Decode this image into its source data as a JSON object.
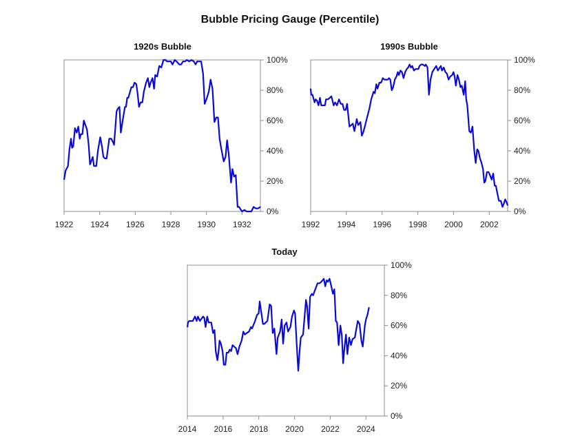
{
  "title": "Bubble Pricing Gauge (Percentile)",
  "colors": {
    "line": "#0a0ad8",
    "axis": "#8c8c8c"
  },
  "chart_data": [
    {
      "type": "line",
      "title": "1920s Bubble",
      "xlabel": "",
      "ylabel": "",
      "xlim": [
        1922,
        1933.03
      ],
      "ylim": [
        0,
        100
      ],
      "xticks": [
        "1922",
        "1924",
        "1926",
        "1928",
        "1930",
        "1932"
      ],
      "yticks": [
        "0%",
        "20%",
        "40%",
        "60%",
        "80%",
        "100%"
      ],
      "grid": false,
      "points": [
        [
          1922.0,
          21
        ],
        [
          1922.09,
          27
        ],
        [
          1922.22,
          30
        ],
        [
          1922.3,
          41
        ],
        [
          1922.39,
          48
        ],
        [
          1922.45,
          42
        ],
        [
          1922.52,
          43
        ],
        [
          1922.61,
          55
        ],
        [
          1922.71,
          52
        ],
        [
          1922.8,
          56
        ],
        [
          1922.88,
          48
        ],
        [
          1922.94,
          51
        ],
        [
          1923.03,
          51
        ],
        [
          1923.11,
          60
        ],
        [
          1923.2,
          57
        ],
        [
          1923.29,
          54
        ],
        [
          1923.38,
          44
        ],
        [
          1923.46,
          31
        ],
        [
          1923.52,
          33
        ],
        [
          1923.61,
          36
        ],
        [
          1923.68,
          30
        ],
        [
          1923.81,
          30
        ],
        [
          1923.9,
          40
        ],
        [
          1924.03,
          49
        ],
        [
          1924.13,
          43
        ],
        [
          1924.21,
          36
        ],
        [
          1924.3,
          35
        ],
        [
          1924.39,
          35
        ],
        [
          1924.54,
          48
        ],
        [
          1924.65,
          48
        ],
        [
          1924.74,
          46
        ],
        [
          1924.81,
          44
        ],
        [
          1924.95,
          66
        ],
        [
          1925.03,
          68
        ],
        [
          1925.11,
          69
        ],
        [
          1925.19,
          52
        ],
        [
          1925.32,
          62
        ],
        [
          1925.42,
          69
        ],
        [
          1925.48,
          69
        ],
        [
          1925.55,
          75
        ],
        [
          1925.61,
          75
        ],
        [
          1925.78,
          82
        ],
        [
          1925.87,
          82
        ],
        [
          1925.96,
          85
        ],
        [
          1926.06,
          84
        ],
        [
          1926.13,
          78
        ],
        [
          1926.21,
          69
        ],
        [
          1926.3,
          72
        ],
        [
          1926.4,
          72
        ],
        [
          1926.48,
          79
        ],
        [
          1926.61,
          85
        ],
        [
          1926.71,
          88
        ],
        [
          1926.79,
          82
        ],
        [
          1926.86,
          85
        ],
        [
          1926.97,
          88
        ],
        [
          1927.06,
          81
        ],
        [
          1927.12,
          90
        ],
        [
          1927.23,
          89
        ],
        [
          1927.35,
          96
        ],
        [
          1927.46,
          95
        ],
        [
          1927.59,
          100
        ],
        [
          1927.69,
          100
        ],
        [
          1927.79,
          99
        ],
        [
          1927.9,
          99
        ],
        [
          1928.0,
          99
        ],
        [
          1928.09,
          97
        ],
        [
          1928.22,
          100
        ],
        [
          1928.32,
          99
        ],
        [
          1928.48,
          97
        ],
        [
          1928.58,
          97
        ],
        [
          1928.68,
          99
        ],
        [
          1928.8,
          99
        ],
        [
          1928.9,
          100
        ],
        [
          1929.03,
          99
        ],
        [
          1929.16,
          100
        ],
        [
          1929.29,
          99
        ],
        [
          1929.39,
          97
        ],
        [
          1929.48,
          99
        ],
        [
          1929.61,
          99
        ],
        [
          1929.7,
          99
        ],
        [
          1929.81,
          91
        ],
        [
          1929.9,
          71
        ],
        [
          1930.0,
          74
        ],
        [
          1930.13,
          79
        ],
        [
          1930.23,
          87
        ],
        [
          1930.34,
          81
        ],
        [
          1930.45,
          59
        ],
        [
          1930.55,
          62
        ],
        [
          1930.65,
          62
        ],
        [
          1930.74,
          48
        ],
        [
          1930.84,
          41
        ],
        [
          1930.97,
          33
        ],
        [
          1931.07,
          36
        ],
        [
          1931.16,
          47
        ],
        [
          1931.25,
          38
        ],
        [
          1931.38,
          19
        ],
        [
          1931.46,
          28
        ],
        [
          1931.55,
          23
        ],
        [
          1931.65,
          24
        ],
        [
          1931.75,
          3
        ],
        [
          1931.83,
          3
        ],
        [
          1931.94,
          1
        ],
        [
          1932.0,
          0
        ],
        [
          1932.13,
          1
        ],
        [
          1932.26,
          0
        ],
        [
          1932.39,
          0
        ],
        [
          1932.52,
          0
        ],
        [
          1932.65,
          3
        ],
        [
          1932.77,
          2
        ],
        [
          1932.9,
          2
        ],
        [
          1933.03,
          3
        ]
      ]
    },
    {
      "type": "line",
      "title": "1990s Bubble",
      "xlabel": "",
      "ylabel": "",
      "xlim": [
        1992,
        2003.03
      ],
      "ylim": [
        0,
        100
      ],
      "xticks": [
        "1992",
        "1994",
        "1996",
        "1998",
        "2000",
        "2002"
      ],
      "yticks": [
        "0%",
        "20%",
        "40%",
        "60%",
        "80%",
        "100%"
      ],
      "grid": false,
      "points": [
        [
          1992.0,
          81
        ],
        [
          1992.03,
          77
        ],
        [
          1992.1,
          77
        ],
        [
          1992.22,
          72
        ],
        [
          1992.28,
          74
        ],
        [
          1992.36,
          73
        ],
        [
          1992.44,
          70
        ],
        [
          1992.52,
          75
        ],
        [
          1992.59,
          70
        ],
        [
          1992.71,
          70
        ],
        [
          1992.8,
          70
        ],
        [
          1992.86,
          74
        ],
        [
          1992.97,
          74
        ],
        [
          1993.07,
          75
        ],
        [
          1993.16,
          76
        ],
        [
          1993.29,
          70
        ],
        [
          1993.37,
          72
        ],
        [
          1993.47,
          70
        ],
        [
          1993.59,
          74
        ],
        [
          1993.68,
          71
        ],
        [
          1993.78,
          71
        ],
        [
          1993.87,
          67
        ],
        [
          1993.96,
          67
        ],
        [
          1994.04,
          71
        ],
        [
          1994.17,
          56
        ],
        [
          1994.27,
          57
        ],
        [
          1994.36,
          58
        ],
        [
          1994.45,
          53
        ],
        [
          1994.58,
          61
        ],
        [
          1994.66,
          57
        ],
        [
          1994.79,
          59
        ],
        [
          1994.86,
          50
        ],
        [
          1994.94,
          52
        ],
        [
          1995.03,
          56
        ],
        [
          1995.16,
          62
        ],
        [
          1995.29,
          68
        ],
        [
          1995.39,
          74
        ],
        [
          1995.52,
          79
        ],
        [
          1995.59,
          78
        ],
        [
          1995.68,
          84
        ],
        [
          1995.74,
          81
        ],
        [
          1995.85,
          85
        ],
        [
          1995.94,
          85
        ],
        [
          1996.04,
          88
        ],
        [
          1996.13,
          87
        ],
        [
          1996.32,
          87
        ],
        [
          1996.39,
          88
        ],
        [
          1996.46,
          87
        ],
        [
          1996.54,
          80
        ],
        [
          1996.62,
          82
        ],
        [
          1996.71,
          87
        ],
        [
          1996.8,
          89
        ],
        [
          1996.88,
          92
        ],
        [
          1996.94,
          90
        ],
        [
          1997.03,
          93
        ],
        [
          1997.11,
          92
        ],
        [
          1997.2,
          88
        ],
        [
          1997.29,
          92
        ],
        [
          1997.38,
          94
        ],
        [
          1997.46,
          95
        ],
        [
          1997.54,
          97
        ],
        [
          1997.61,
          95
        ],
        [
          1997.69,
          96
        ],
        [
          1997.78,
          93
        ],
        [
          1997.87,
          94
        ],
        [
          1998.03,
          94
        ],
        [
          1998.09,
          96
        ],
        [
          1998.19,
          97
        ],
        [
          1998.28,
          97
        ],
        [
          1998.39,
          96
        ],
        [
          1998.45,
          97
        ],
        [
          1998.54,
          95
        ],
        [
          1998.62,
          77
        ],
        [
          1998.71,
          87
        ],
        [
          1998.81,
          92
        ],
        [
          1998.92,
          94
        ],
        [
          1999.03,
          96
        ],
        [
          1999.12,
          93
        ],
        [
          1999.23,
          95
        ],
        [
          1999.29,
          96
        ],
        [
          1999.35,
          93
        ],
        [
          1999.45,
          95
        ],
        [
          1999.54,
          92
        ],
        [
          1999.63,
          91
        ],
        [
          1999.72,
          87
        ],
        [
          1999.81,
          89
        ],
        [
          1999.92,
          90
        ],
        [
          2000.0,
          92
        ],
        [
          2000.06,
          89
        ],
        [
          2000.13,
          83
        ],
        [
          2000.22,
          90
        ],
        [
          2000.3,
          87
        ],
        [
          2000.39,
          82
        ],
        [
          2000.46,
          83
        ],
        [
          2000.57,
          77
        ],
        [
          2000.65,
          86
        ],
        [
          2000.71,
          74
        ],
        [
          2000.77,
          70
        ],
        [
          2000.88,
          53
        ],
        [
          2000.97,
          52
        ],
        [
          2001.06,
          56
        ],
        [
          2001.16,
          40
        ],
        [
          2001.24,
          32
        ],
        [
          2001.32,
          41
        ],
        [
          2001.39,
          40
        ],
        [
          2001.48,
          35
        ],
        [
          2001.57,
          32
        ],
        [
          2001.65,
          28
        ],
        [
          2001.72,
          19
        ],
        [
          2001.78,
          20
        ],
        [
          2001.87,
          26
        ],
        [
          2001.96,
          26
        ],
        [
          2002.04,
          24
        ],
        [
          2002.13,
          21
        ],
        [
          2002.22,
          25
        ],
        [
          2002.3,
          17
        ],
        [
          2002.37,
          17
        ],
        [
          2002.45,
          12
        ],
        [
          2002.54,
          7
        ],
        [
          2002.65,
          7
        ],
        [
          2002.74,
          3
        ],
        [
          2002.81,
          5
        ],
        [
          2002.89,
          8
        ],
        [
          2002.97,
          6
        ],
        [
          2003.03,
          4
        ]
      ]
    },
    {
      "type": "line",
      "title": "Today",
      "xlabel": "",
      "ylabel": "",
      "xlim": [
        2014,
        2025.03
      ],
      "ylim": [
        0,
        100
      ],
      "xticks": [
        "2014",
        "2016",
        "2018",
        "2020",
        "2022",
        "2024"
      ],
      "yticks": [
        "0%",
        "20%",
        "40%",
        "60%",
        "80%",
        "100%"
      ],
      "grid": false,
      "points": [
        [
          2014.0,
          59
        ],
        [
          2014.04,
          62
        ],
        [
          2014.1,
          63
        ],
        [
          2014.3,
          63
        ],
        [
          2014.43,
          66
        ],
        [
          2014.52,
          63
        ],
        [
          2014.59,
          66
        ],
        [
          2014.7,
          63
        ],
        [
          2014.88,
          66
        ],
        [
          2014.95,
          65
        ],
        [
          2015.02,
          59
        ],
        [
          2015.11,
          66
        ],
        [
          2015.19,
          62
        ],
        [
          2015.34,
          62
        ],
        [
          2015.44,
          55
        ],
        [
          2015.52,
          57
        ],
        [
          2015.59,
          43
        ],
        [
          2015.68,
          37
        ],
        [
          2015.75,
          43
        ],
        [
          2015.8,
          50
        ],
        [
          2015.88,
          48
        ],
        [
          2015.97,
          43
        ],
        [
          2016.04,
          34
        ],
        [
          2016.13,
          34
        ],
        [
          2016.2,
          42
        ],
        [
          2016.29,
          42
        ],
        [
          2016.37,
          44
        ],
        [
          2016.45,
          43
        ],
        [
          2016.53,
          47
        ],
        [
          2016.62,
          46
        ],
        [
          2016.72,
          45
        ],
        [
          2016.81,
          41
        ],
        [
          2016.91,
          46
        ],
        [
          2017.04,
          50
        ],
        [
          2017.13,
          56
        ],
        [
          2017.22,
          54
        ],
        [
          2017.32,
          55
        ],
        [
          2017.45,
          56
        ],
        [
          2017.56,
          59
        ],
        [
          2017.62,
          58
        ],
        [
          2017.79,
          63
        ],
        [
          2017.9,
          67
        ],
        [
          2017.99,
          68
        ],
        [
          2018.05,
          76
        ],
        [
          2018.11,
          71
        ],
        [
          2018.23,
          61
        ],
        [
          2018.3,
          61
        ],
        [
          2018.39,
          62
        ],
        [
          2018.48,
          63
        ],
        [
          2018.61,
          74
        ],
        [
          2018.69,
          73
        ],
        [
          2018.78,
          55
        ],
        [
          2018.87,
          58
        ],
        [
          2018.99,
          41
        ],
        [
          2019.06,
          52
        ],
        [
          2019.19,
          56
        ],
        [
          2019.28,
          64
        ],
        [
          2019.36,
          48
        ],
        [
          2019.45,
          60
        ],
        [
          2019.55,
          62
        ],
        [
          2019.64,
          56
        ],
        [
          2019.77,
          59
        ],
        [
          2019.86,
          66
        ],
        [
          2019.97,
          70
        ],
        [
          2020.03,
          68
        ],
        [
          2020.13,
          46
        ],
        [
          2020.21,
          30
        ],
        [
          2020.29,
          44
        ],
        [
          2020.35,
          52
        ],
        [
          2020.48,
          54
        ],
        [
          2020.64,
          77
        ],
        [
          2020.7,
          73
        ],
        [
          2020.79,
          58
        ],
        [
          2020.87,
          79
        ],
        [
          2020.97,
          81
        ],
        [
          2021.04,
          80
        ],
        [
          2021.16,
          84
        ],
        [
          2021.29,
          88
        ],
        [
          2021.4,
          88
        ],
        [
          2021.5,
          89
        ],
        [
          2021.64,
          91
        ],
        [
          2021.72,
          86
        ],
        [
          2021.8,
          90
        ],
        [
          2021.87,
          89
        ],
        [
          2021.96,
          91
        ],
        [
          2022.04,
          87
        ],
        [
          2022.15,
          81
        ],
        [
          2022.23,
          84
        ],
        [
          2022.31,
          63
        ],
        [
          2022.38,
          62
        ],
        [
          2022.47,
          47
        ],
        [
          2022.57,
          60
        ],
        [
          2022.65,
          53
        ],
        [
          2022.72,
          35
        ],
        [
          2022.8,
          46
        ],
        [
          2022.88,
          54
        ],
        [
          2022.96,
          41
        ],
        [
          2023.06,
          52
        ],
        [
          2023.16,
          47
        ],
        [
          2023.25,
          51
        ],
        [
          2023.38,
          52
        ],
        [
          2023.45,
          57
        ],
        [
          2023.54,
          63
        ],
        [
          2023.64,
          61
        ],
        [
          2023.74,
          50
        ],
        [
          2023.82,
          46
        ],
        [
          2023.94,
          60
        ],
        [
          2024.0,
          64
        ],
        [
          2024.08,
          67
        ],
        [
          2024.17,
          72
        ]
      ]
    }
  ]
}
